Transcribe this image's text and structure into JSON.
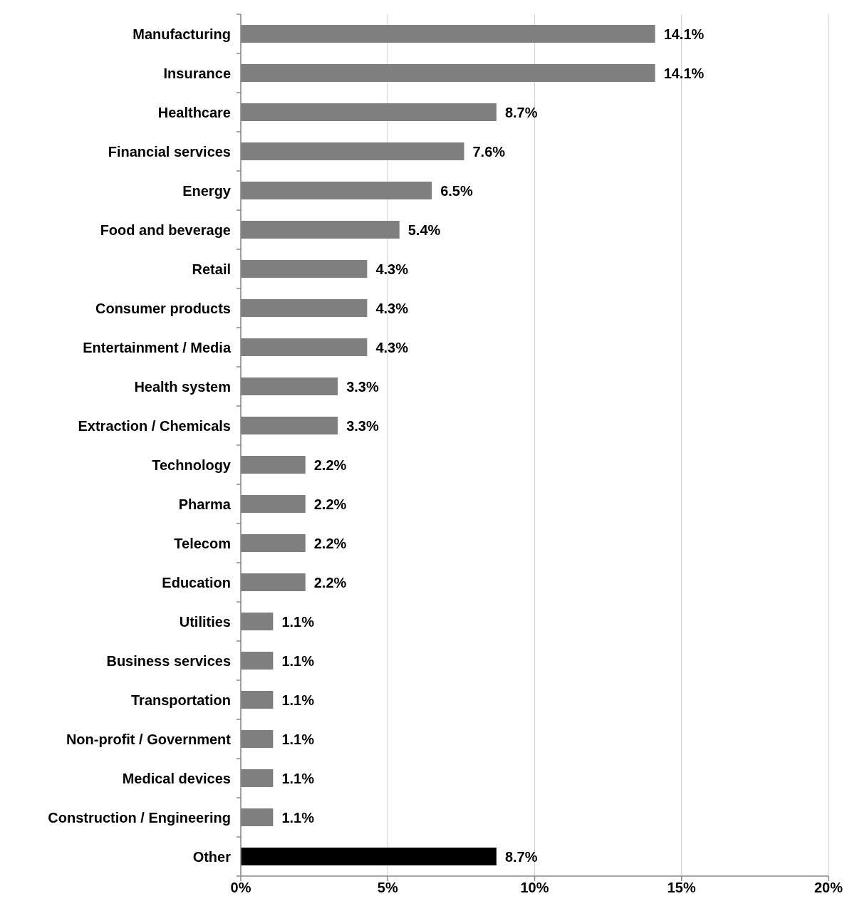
{
  "chart_data": {
    "type": "bar",
    "orientation": "horizontal",
    "categories": [
      "Manufacturing",
      "Insurance",
      "Healthcare",
      "Financial services",
      "Energy",
      "Food and beverage",
      "Retail",
      "Consumer products",
      "Entertainment / Media",
      "Health system",
      "Extraction / Chemicals",
      "Technology",
      "Pharma",
      "Telecom",
      "Education",
      "Utilities",
      "Business services",
      "Transportation",
      "Non-profit / Government",
      "Medical devices",
      "Construction / Engineering",
      "Other"
    ],
    "values": [
      14.1,
      14.1,
      8.7,
      7.6,
      6.5,
      5.4,
      4.3,
      4.3,
      4.3,
      3.3,
      3.3,
      2.2,
      2.2,
      2.2,
      2.2,
      1.1,
      1.1,
      1.1,
      1.1,
      1.1,
      1.1,
      8.7
    ],
    "value_labels": [
      "14.1%",
      "14.1%",
      "8.7%",
      "7.6%",
      "6.5%",
      "5.4%",
      "4.3%",
      "4.3%",
      "4.3%",
      "3.3%",
      "3.3%",
      "2.2%",
      "2.2%",
      "2.2%",
      "2.2%",
      "1.1%",
      "1.1%",
      "1.1%",
      "1.1%",
      "1.1%",
      "1.1%",
      "8.7%"
    ],
    "colors": [
      "#7f7f7f",
      "#7f7f7f",
      "#7f7f7f",
      "#7f7f7f",
      "#7f7f7f",
      "#7f7f7f",
      "#7f7f7f",
      "#7f7f7f",
      "#7f7f7f",
      "#7f7f7f",
      "#7f7f7f",
      "#7f7f7f",
      "#7f7f7f",
      "#7f7f7f",
      "#7f7f7f",
      "#7f7f7f",
      "#7f7f7f",
      "#7f7f7f",
      "#7f7f7f",
      "#7f7f7f",
      "#7f7f7f",
      "#000000"
    ],
    "xlim": [
      0,
      20
    ],
    "xticks": [
      {
        "value": 0,
        "label": "0%"
      },
      {
        "value": 5,
        "label": "5%"
      },
      {
        "value": 10,
        "label": "10%"
      },
      {
        "value": 15,
        "label": "15%"
      },
      {
        "value": 20,
        "label": "20%"
      }
    ],
    "grid": "x"
  }
}
